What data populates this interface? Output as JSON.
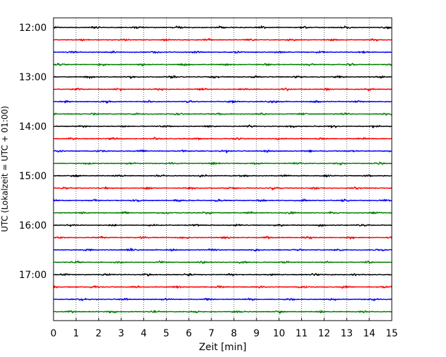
{
  "chart_data": {
    "type": "line",
    "title": "",
    "xlabel": "Zeit  [min]",
    "ylabel": "UTC (Lokalzeit = UTC + 01:00)",
    "xlim": [
      0,
      15
    ],
    "x_ticks": [
      0,
      1,
      2,
      3,
      4,
      5,
      6,
      7,
      8,
      9,
      10,
      11,
      12,
      13,
      14,
      15
    ],
    "y_tick_labels": [
      "12:00",
      "13:00",
      "14:00",
      "15:00",
      "16:00",
      "17:00"
    ],
    "grid": "vertical dotted lines at every minute",
    "trace_interval_minutes": 15,
    "trace_colors": [
      "#000000",
      "#ff0000",
      "#0000ff",
      "#007f00"
    ],
    "traces": [
      {
        "start": "12:00",
        "color": "#000000"
      },
      {
        "start": "12:15",
        "color": "#ff0000"
      },
      {
        "start": "12:30",
        "color": "#0000ff"
      },
      {
        "start": "12:45",
        "color": "#007f00"
      },
      {
        "start": "13:00",
        "color": "#000000"
      },
      {
        "start": "13:15",
        "color": "#ff0000"
      },
      {
        "start": "13:30",
        "color": "#0000ff"
      },
      {
        "start": "13:45",
        "color": "#007f00"
      },
      {
        "start": "14:00",
        "color": "#000000"
      },
      {
        "start": "14:15",
        "color": "#ff0000"
      },
      {
        "start": "14:30",
        "color": "#0000ff"
      },
      {
        "start": "14:45",
        "color": "#007f00"
      },
      {
        "start": "15:00",
        "color": "#000000"
      },
      {
        "start": "15:15",
        "color": "#ff0000"
      },
      {
        "start": "15:30",
        "color": "#0000ff"
      },
      {
        "start": "15:45",
        "color": "#007f00"
      },
      {
        "start": "16:00",
        "color": "#000000"
      },
      {
        "start": "16:15",
        "color": "#ff0000"
      },
      {
        "start": "16:30",
        "color": "#0000ff"
      },
      {
        "start": "16:45",
        "color": "#007f00"
      },
      {
        "start": "17:00",
        "color": "#000000"
      },
      {
        "start": "17:15",
        "color": "#ff0000"
      },
      {
        "start": "17:30",
        "color": "#0000ff"
      },
      {
        "start": "17:45",
        "color": "#007f00"
      }
    ]
  }
}
